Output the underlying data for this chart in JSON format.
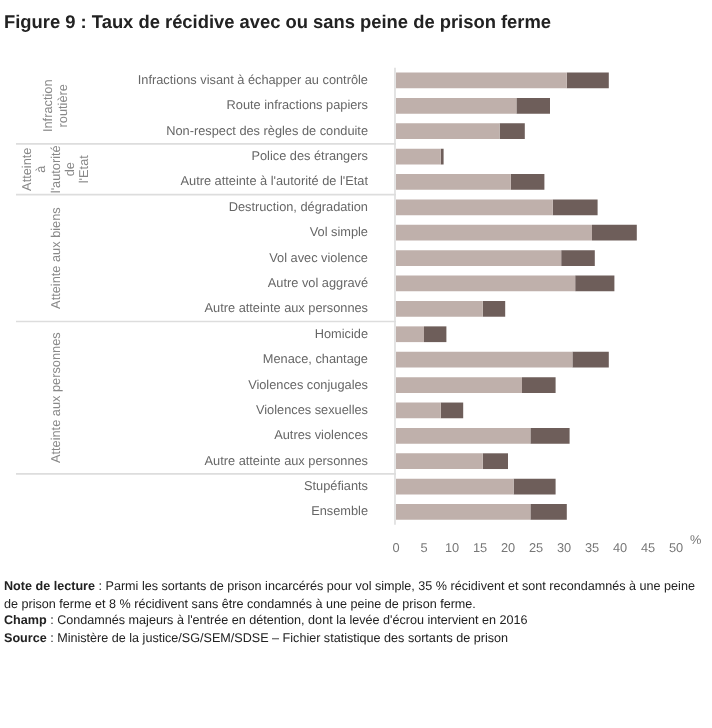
{
  "chart_data": {
    "type": "bar",
    "orientation": "horizontal",
    "stacked": true,
    "title": "Figure 9 : Taux de récidive avec ou sans peine de prison ferme",
    "categories": [
      "Infractions visant à échapper au contrôle",
      "Route infractions papiers",
      "Non-respect des règles de conduite",
      "Police des étrangers",
      "Autre atteinte à l'autorité de l'Etat",
      "Destruction, dégradation",
      "Vol simple",
      "Vol avec violence",
      "Autre vol aggravé",
      "Autre atteinte aux personnes",
      "Homicide",
      "Menace, chantage",
      "Violences conjugales",
      "Violences sexuelles",
      "Autres violences",
      "Autre atteinte aux personnes",
      "Stupéfiants",
      "Ensemble"
    ],
    "series": [
      {
        "color": "#bfb0ab",
        "values": [
          30.5,
          21.5,
          18.5,
          8,
          20.5,
          28,
          35,
          29.5,
          32,
          15.5,
          5,
          31.5,
          22.5,
          8,
          24,
          15.5,
          21,
          24
        ]
      },
      {
        "color": "#6e5e5a",
        "values": [
          7.5,
          6,
          4.5,
          0.5,
          6,
          8,
          8,
          6,
          7,
          4,
          4,
          6.5,
          6,
          4,
          7,
          4.5,
          7.5,
          6.5
        ]
      }
    ],
    "xlabel": "%",
    "xlim": [
      0,
      50
    ],
    "xticks": [
      0,
      5,
      10,
      15,
      20,
      25,
      30,
      35,
      40,
      45,
      50
    ],
    "grid": false,
    "legend": false,
    "annotations": [
      "Infraction routière",
      "Atteinte à l'autorité de l'Etat",
      "Atteinte aux biens",
      "Atteinte aux personnes",
      "Note de lecture : Parmi les sortants de prison incarcérés pour vol simple, 35 % récidivent et sont recondamnés à une peine de prison ferme et 8 % récidivent sans être condamnés à une peine de prison ferme.",
      "Champ : Condamnés majeurs à l'entrée en détention, dont la levée d'écrou intervient en 2016",
      "Source : Ministère de la justice/SG/SEM/SDSE – Fichier statistique des sortants de prison"
    ]
  }
}
